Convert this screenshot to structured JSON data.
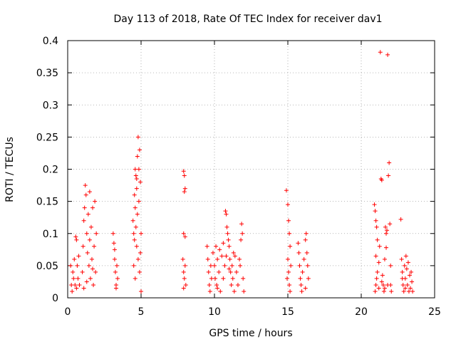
{
  "chart_data": {
    "type": "scatter",
    "title": "Day 113 of 2018, Rate Of TEC Index for receiver dav1",
    "xlabel": "GPS time / hours",
    "ylabel": "ROTI / TECUs",
    "xlim": [
      0,
      25
    ],
    "ylim": [
      0,
      0.4
    ],
    "xticks": [
      0,
      5,
      10,
      15,
      20,
      25
    ],
    "xtick_labels": [
      "0",
      "5",
      "10",
      "15",
      "20",
      "25"
    ],
    "yticks": [
      0,
      0.05,
      0.1,
      0.15,
      0.2,
      0.25,
      0.3,
      0.35,
      0.4
    ],
    "ytick_labels": [
      "0",
      "0.05",
      "0.1",
      "0.15",
      "0.2",
      "0.25",
      "0.3",
      "0.35",
      "0.4"
    ],
    "grid": true,
    "marker": "+",
    "color": "#ff0000",
    "series": [
      {
        "name": "ROTI",
        "points": [
          [
            0.2,
            0.05
          ],
          [
            0.25,
            0.02
          ],
          [
            0.3,
            0.01
          ],
          [
            0.35,
            0.04
          ],
          [
            0.4,
            0.03
          ],
          [
            0.45,
            0.06
          ],
          [
            0.5,
            0.02
          ],
          [
            0.55,
            0.095
          ],
          [
            0.6,
            0.09
          ],
          [
            0.6,
            0.015
          ],
          [
            0.65,
            0.05
          ],
          [
            0.7,
            0.03
          ],
          [
            0.75,
            0.065
          ],
          [
            0.8,
            0.02
          ],
          [
            1.0,
            0.04
          ],
          [
            1.05,
            0.08
          ],
          [
            1.1,
            0.12
          ],
          [
            1.15,
            0.14
          ],
          [
            1.2,
            0.175
          ],
          [
            1.25,
            0.16
          ],
          [
            1.3,
            0.1
          ],
          [
            1.35,
            0.07
          ],
          [
            1.4,
            0.13
          ],
          [
            1.45,
            0.05
          ],
          [
            1.5,
            0.09
          ],
          [
            1.55,
            0.03
          ],
          [
            1.6,
            0.11
          ],
          [
            1.65,
            0.06
          ],
          [
            1.7,
            0.14
          ],
          [
            1.75,
            0.02
          ],
          [
            1.8,
            0.08
          ],
          [
            1.85,
            0.15
          ],
          [
            1.9,
            0.04
          ],
          [
            1.95,
            0.1
          ],
          [
            1.3,
            0.025
          ],
          [
            1.5,
            0.165
          ],
          [
            1.1,
            0.015
          ],
          [
            1.7,
            0.045
          ],
          [
            3.1,
            0.1
          ],
          [
            3.15,
            0.085
          ],
          [
            3.2,
            0.06
          ],
          [
            3.25,
            0.04
          ],
          [
            3.3,
            0.02
          ],
          [
            3.35,
            0.05
          ],
          [
            3.4,
            0.03
          ],
          [
            3.2,
            0.075
          ],
          [
            3.3,
            0.015
          ],
          [
            4.45,
            0.12
          ],
          [
            4.5,
            0.1
          ],
          [
            4.55,
            0.16
          ],
          [
            4.6,
            0.14
          ],
          [
            4.65,
            0.19
          ],
          [
            4.7,
            0.17
          ],
          [
            4.75,
            0.22
          ],
          [
            4.8,
            0.25
          ],
          [
            4.85,
            0.2
          ],
          [
            4.9,
            0.23
          ],
          [
            4.95,
            0.18
          ],
          [
            5.0,
            0.1
          ],
          [
            4.5,
            0.05
          ],
          [
            4.6,
            0.03
          ],
          [
            4.7,
            0.08
          ],
          [
            4.8,
            0.06
          ],
          [
            4.9,
            0.04
          ],
          [
            5.0,
            0.01
          ],
          [
            4.55,
            0.09
          ],
          [
            4.65,
            0.11
          ],
          [
            4.75,
            0.13
          ],
          [
            4.85,
            0.15
          ],
          [
            4.95,
            0.07
          ],
          [
            4.6,
            0.2
          ],
          [
            4.7,
            0.185
          ],
          [
            7.9,
            0.197
          ],
          [
            7.95,
            0.19
          ],
          [
            8.0,
            0.17
          ],
          [
            7.95,
            0.165
          ],
          [
            7.9,
            0.1
          ],
          [
            8.0,
            0.095
          ],
          [
            7.85,
            0.06
          ],
          [
            7.9,
            0.04
          ],
          [
            7.95,
            0.03
          ],
          [
            8.0,
            0.05
          ],
          [
            8.05,
            0.02
          ],
          [
            7.9,
            0.015
          ],
          [
            9.5,
            0.08
          ],
          [
            9.55,
            0.06
          ],
          [
            9.6,
            0.04
          ],
          [
            9.65,
            0.02
          ],
          [
            9.7,
            0.01
          ],
          [
            9.75,
            0.05
          ],
          [
            9.8,
            0.03
          ],
          [
            9.9,
            0.07
          ],
          [
            10.0,
            0.05
          ],
          [
            10.05,
            0.03
          ],
          [
            10.1,
            0.08
          ],
          [
            10.15,
            0.02
          ],
          [
            10.2,
            0.06
          ],
          [
            10.3,
            0.04
          ],
          [
            10.35,
            0.075
          ],
          [
            10.4,
            0.01
          ],
          [
            10.5,
            0.065
          ],
          [
            10.6,
            0.03
          ],
          [
            10.7,
            0.05
          ],
          [
            10.75,
            0.135
          ],
          [
            10.8,
            0.13
          ],
          [
            10.85,
            0.11
          ],
          [
            10.9,
            0.1
          ],
          [
            10.95,
            0.09
          ],
          [
            11.0,
            0.08
          ],
          [
            11.05,
            0.06
          ],
          [
            11.1,
            0.04
          ],
          [
            11.15,
            0.02
          ],
          [
            11.2,
            0.05
          ],
          [
            11.25,
            0.03
          ],
          [
            11.3,
            0.07
          ],
          [
            11.35,
            0.01
          ],
          [
            11.4,
            0.065
          ],
          [
            11.5,
            0.04
          ],
          [
            11.6,
            0.02
          ],
          [
            11.7,
            0.06
          ],
          [
            11.75,
            0.05
          ],
          [
            11.8,
            0.09
          ],
          [
            11.85,
            0.115
          ],
          [
            11.9,
            0.1
          ],
          [
            11.95,
            0.03
          ],
          [
            12.0,
            0.01
          ],
          [
            10.6,
            0.085
          ],
          [
            10.8,
            0.065
          ],
          [
            11.0,
            0.045
          ],
          [
            10.2,
            0.015
          ],
          [
            14.9,
            0.167
          ],
          [
            15.0,
            0.145
          ],
          [
            15.05,
            0.12
          ],
          [
            15.1,
            0.1
          ],
          [
            15.15,
            0.08
          ],
          [
            15.0,
            0.06
          ],
          [
            15.05,
            0.04
          ],
          [
            15.1,
            0.02
          ],
          [
            15.15,
            0.01
          ],
          [
            14.95,
            0.03
          ],
          [
            15.2,
            0.05
          ],
          [
            15.7,
            0.085
          ],
          [
            15.75,
            0.07
          ],
          [
            15.8,
            0.05
          ],
          [
            15.85,
            0.03
          ],
          [
            15.9,
            0.02
          ],
          [
            15.95,
            0.01
          ],
          [
            16.0,
            0.04
          ],
          [
            16.1,
            0.06
          ],
          [
            16.2,
            0.09
          ],
          [
            16.25,
            0.1
          ],
          [
            16.3,
            0.07
          ],
          [
            16.35,
            0.05
          ],
          [
            16.4,
            0.03
          ],
          [
            16.2,
            0.015
          ],
          [
            20.9,
            0.145
          ],
          [
            20.95,
            0.135
          ],
          [
            21.0,
            0.12
          ],
          [
            21.05,
            0.11
          ],
          [
            21.1,
            0.09
          ],
          [
            21.0,
            0.065
          ],
          [
            21.1,
            0.04
          ],
          [
            21.05,
            0.03
          ],
          [
            21.0,
            0.02
          ],
          [
            20.95,
            0.01
          ],
          [
            21.2,
            0.055
          ],
          [
            21.25,
            0.08
          ],
          [
            21.3,
            0.382
          ],
          [
            21.35,
            0.185
          ],
          [
            21.4,
            0.183
          ],
          [
            21.45,
            0.035
          ],
          [
            21.5,
            0.02
          ],
          [
            21.55,
            0.01
          ],
          [
            21.6,
            0.06
          ],
          [
            21.65,
            0.11
          ],
          [
            21.7,
            0.1
          ],
          [
            21.75,
            0.105
          ],
          [
            21.8,
            0.378
          ],
          [
            21.85,
            0.19
          ],
          [
            21.9,
            0.21
          ],
          [
            21.95,
            0.115
          ],
          [
            22.0,
            0.02
          ],
          [
            22.05,
            0.01
          ],
          [
            21.2,
            0.015
          ],
          [
            21.4,
            0.025
          ],
          [
            21.6,
            0.015
          ],
          [
            21.8,
            0.02
          ],
          [
            22.0,
            0.05
          ],
          [
            21.7,
            0.078
          ],
          [
            22.7,
            0.122
          ],
          [
            22.75,
            0.06
          ],
          [
            22.8,
            0.04
          ],
          [
            22.85,
            0.02
          ],
          [
            22.9,
            0.01
          ],
          [
            22.95,
            0.05
          ],
          [
            23.0,
            0.03
          ],
          [
            23.05,
            0.065
          ],
          [
            23.1,
            0.045
          ],
          [
            23.15,
            0.02
          ],
          [
            23.2,
            0.055
          ],
          [
            23.25,
            0.01
          ],
          [
            23.3,
            0.035
          ],
          [
            23.35,
            0.015
          ],
          [
            23.4,
            0.04
          ],
          [
            23.45,
            0.025
          ],
          [
            23.5,
            0.01
          ],
          [
            22.8,
            0.03
          ],
          [
            23.0,
            0.015
          ]
        ]
      }
    ]
  }
}
